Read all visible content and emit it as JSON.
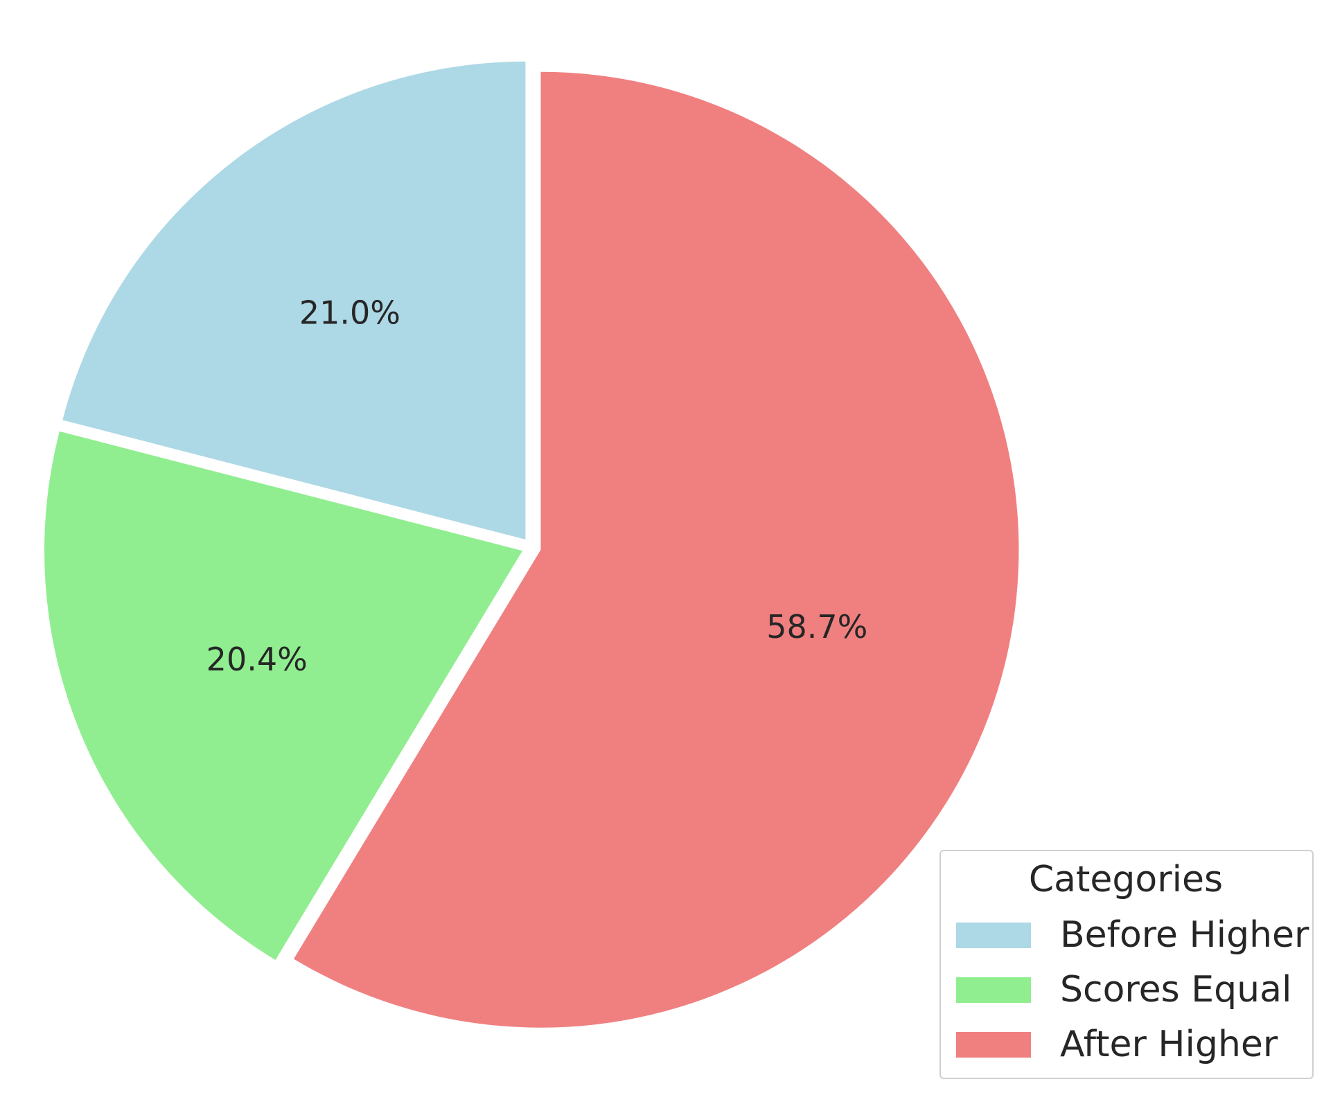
{
  "chart_data": {
    "type": "pie",
    "categories": [
      "Before Higher",
      "Scores Equal",
      "After Higher"
    ],
    "values": [
      21.0,
      20.4,
      58.7
    ],
    "labels": [
      "21.0%",
      "20.4%",
      "58.7%"
    ],
    "colors": [
      "#add8e6",
      "#90ee90",
      "#f08080"
    ],
    "start_angle_deg": 90,
    "direction": "counterclockwise",
    "exploded": true,
    "legend": {
      "title": "Categories",
      "placement": "lower-right",
      "entries": [
        "Before Higher",
        "Scores Equal",
        "After Higher"
      ]
    }
  }
}
